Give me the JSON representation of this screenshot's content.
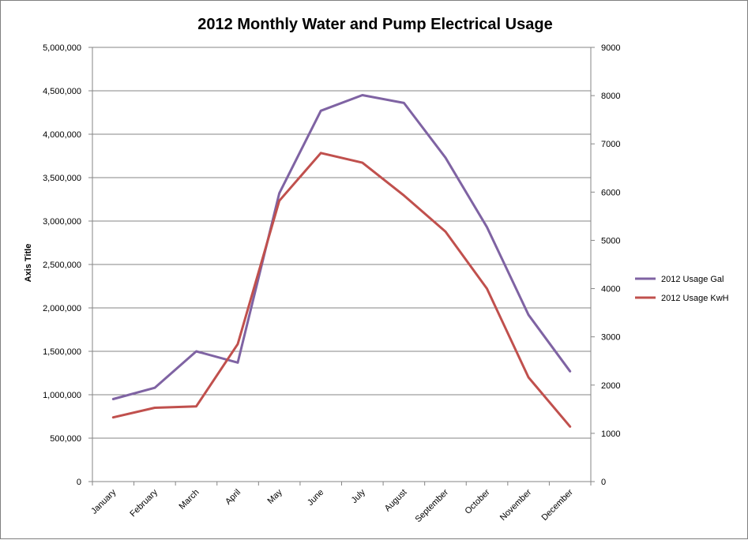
{
  "chart_data": {
    "type": "line",
    "title": "2012 Monthly Water and Pump Electrical Usage",
    "ylabel": "Axis Title",
    "categories": [
      "January",
      "February",
      "March",
      "April",
      "May",
      "June",
      "July",
      "August",
      "September",
      "October",
      "November",
      "December"
    ],
    "y_left": {
      "min": 0,
      "max": 5000000,
      "step": 500000,
      "tick_labels": [
        "0",
        "500,000",
        "1,000,000",
        "1,500,000",
        "2,000,000",
        "2,500,000",
        "3,000,000",
        "3,500,000",
        "4,000,000",
        "4,500,000",
        "5,000,000"
      ]
    },
    "y_right": {
      "min": 0,
      "max": 9000,
      "step": 1000,
      "tick_labels": [
        "0",
        "1000",
        "2000",
        "3000",
        "4000",
        "5000",
        "6000",
        "7000",
        "8000",
        "9000"
      ]
    },
    "grid": true,
    "legend_position": "right",
    "series": [
      {
        "name": "2012 Usage Gal",
        "axis": "left",
        "color": "#7f63a3",
        "values": [
          950000,
          1080000,
          1500000,
          1370000,
          3320000,
          4270000,
          4450000,
          4360000,
          3730000,
          2930000,
          1920000,
          1270000
        ]
      },
      {
        "name": "2012 Usage KwH",
        "axis": "right",
        "color": "#c0504d",
        "values": [
          1330,
          1530,
          1560,
          2850,
          5820,
          6810,
          6610,
          5930,
          5180,
          4000,
          2160,
          1140
        ]
      }
    ]
  }
}
